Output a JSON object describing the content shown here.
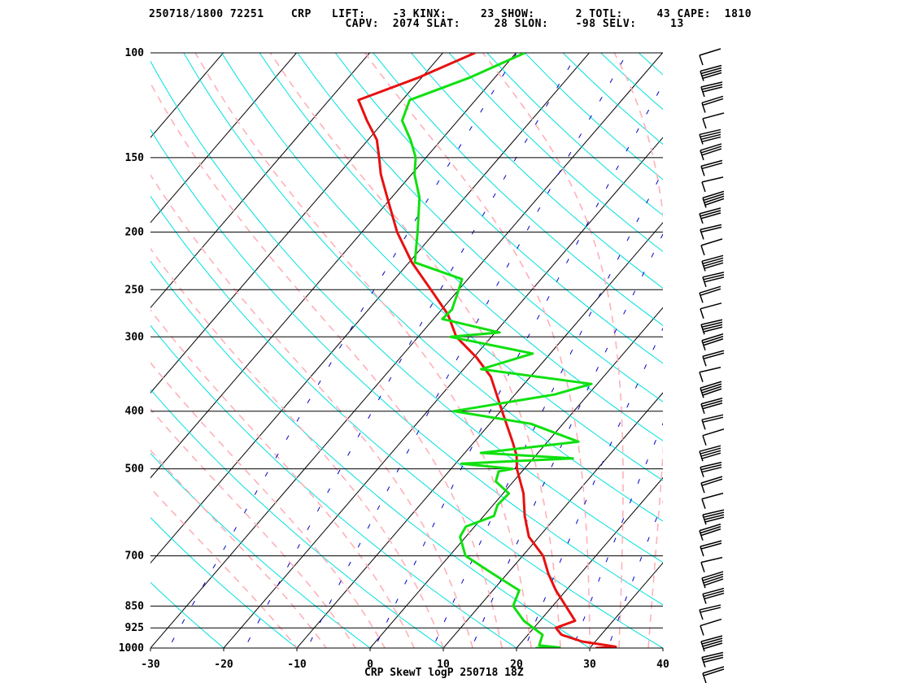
{
  "header": {
    "line1": "250718/1800 72251    CRP   LIFT:    -3 KINX:     23 SHOW:      2 TOTL:     43 CAPE:  1810",
    "line2": "                             CAPV:  2074 SLAT:     28 SLON:    -98 SELV:     13"
  },
  "footer": "CRP SkewT logP 250718 18Z",
  "chart_data": {
    "type": "skewt",
    "title": "CRP SkewT logP 250718 18Z",
    "xlim": [
      -30,
      40
    ],
    "plim": [
      1000,
      100
    ],
    "x_ticks": [
      "-30",
      "-20",
      "-10",
      "0",
      "10",
      "20",
      "30",
      "40"
    ],
    "x_tick_values": [
      -30,
      -20,
      -10,
      0,
      10,
      20,
      30,
      40
    ],
    "p_ticks": [
      "100",
      "150",
      "200",
      "250",
      "300",
      "400",
      "500",
      "700",
      "850",
      "925",
      "1000"
    ],
    "p_tick_values": [
      100,
      150,
      200,
      250,
      300,
      400,
      500,
      700,
      850,
      925,
      1000
    ],
    "grid": true,
    "colors": {
      "temperature": "#e81010",
      "dewpoint": "#10e010",
      "isotherm": "#000000",
      "dry_adiabat": "#00e0e0",
      "moist_adiabat": "#ffb0b8",
      "mixing_ratio": "#0000c8",
      "isobar": "#000000"
    },
    "series": [
      {
        "name": "temperature",
        "points": [
          [
            1000,
            30.8
          ],
          [
            995,
            33.4
          ],
          [
            975,
            28.2
          ],
          [
            950,
            24.6
          ],
          [
            925,
            23.0
          ],
          [
            900,
            24.8
          ],
          [
            850,
            21.8
          ],
          [
            800,
            18.6
          ],
          [
            750,
            15.6
          ],
          [
            700,
            12.8
          ],
          [
            650,
            8.6
          ],
          [
            600,
            5.6
          ],
          [
            550,
            2.8
          ],
          [
            500,
            -1.0
          ],
          [
            475,
            -2.6
          ],
          [
            450,
            -4.8
          ],
          [
            400,
            -9.8
          ],
          [
            350,
            -15.4
          ],
          [
            325,
            -19.6
          ],
          [
            300,
            -24.8
          ],
          [
            275,
            -28.6
          ],
          [
            250,
            -33.8
          ],
          [
            225,
            -39.6
          ],
          [
            200,
            -45.2
          ],
          [
            175,
            -50.6
          ],
          [
            160,
            -54.2
          ],
          [
            150,
            -56.4
          ],
          [
            140,
            -58.8
          ],
          [
            130,
            -62.4
          ],
          [
            120,
            -66.0
          ],
          [
            110,
            -60.4
          ],
          [
            100,
            -55.6
          ]
        ]
      },
      {
        "name": "dewpoint",
        "points": [
          [
            1000,
            22.6
          ],
          [
            998,
            25.8
          ],
          [
            990,
            22.8
          ],
          [
            950,
            22.0
          ],
          [
            900,
            17.8
          ],
          [
            850,
            14.6
          ],
          [
            800,
            13.6
          ],
          [
            750,
            8.0
          ],
          [
            700,
            2.2
          ],
          [
            650,
            -0.8
          ],
          [
            625,
            -1.2
          ],
          [
            600,
            1.4
          ],
          [
            575,
            0.6
          ],
          [
            550,
            0.8
          ],
          [
            525,
            -2.4
          ],
          [
            505,
            -3.2
          ],
          [
            500,
            -1.6
          ],
          [
            490,
            -9.2
          ],
          [
            480,
            5.4
          ],
          [
            470,
            -7.8
          ],
          [
            450,
            4.2
          ],
          [
            420,
            -4.4
          ],
          [
            400,
            -16.4
          ],
          [
            375,
            -4.6
          ],
          [
            360,
            -0.8
          ],
          [
            340,
            -17.6
          ],
          [
            320,
            -12.4
          ],
          [
            300,
            -25.6
          ],
          [
            295,
            -19.4
          ],
          [
            280,
            -28.8
          ],
          [
            270,
            -28.6
          ],
          [
            250,
            -30.0
          ],
          [
            240,
            -30.8
          ],
          [
            225,
            -39.2
          ],
          [
            200,
            -42.4
          ],
          [
            175,
            -46.2
          ],
          [
            160,
            -49.6
          ],
          [
            150,
            -51.4
          ],
          [
            140,
            -54.2
          ],
          [
            130,
            -57.6
          ],
          [
            120,
            -59.0
          ],
          [
            110,
            -53.4
          ],
          [
            100,
            -48.8
          ]
        ]
      }
    ],
    "wind_barbs_count": 40
  }
}
